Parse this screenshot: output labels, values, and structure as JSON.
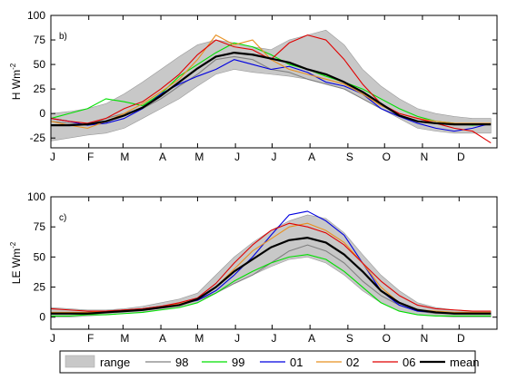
{
  "chart_data": [
    {
      "type": "line",
      "panel_label": "b)",
      "ylabel": "H Wm",
      "ylabel_sup": "-2",
      "ylim": [
        -35,
        100
      ],
      "yticks": [
        100,
        75,
        50,
        25,
        0,
        -25
      ],
      "xlim": [
        0,
        365
      ],
      "month_labels": [
        "J",
        "F",
        "M",
        "A",
        "M",
        "J",
        "J",
        "A",
        "S",
        "O",
        "N",
        "D"
      ],
      "month_starts": [
        0,
        31,
        59,
        90,
        120,
        151,
        181,
        212,
        243,
        273,
        304,
        334
      ],
      "x": [
        0,
        15,
        30,
        45,
        60,
        75,
        90,
        105,
        120,
        135,
        150,
        165,
        180,
        195,
        210,
        225,
        240,
        255,
        270,
        285,
        300,
        315,
        330,
        345,
        360
      ],
      "range": {
        "lower": [
          -28,
          -25,
          -22,
          -20,
          -15,
          -5,
          5,
          15,
          28,
          40,
          45,
          42,
          40,
          38,
          35,
          30,
          25,
          15,
          5,
          -5,
          -15,
          -18,
          -20,
          -20,
          -20
        ],
        "upper": [
          0,
          2,
          5,
          10,
          20,
          32,
          45,
          58,
          70,
          75,
          72,
          68,
          65,
          75,
          80,
          85,
          70,
          45,
          28,
          15,
          5,
          0,
          -3,
          -5,
          -5
        ]
      },
      "mean": [
        -12,
        -12,
        -11,
        -8,
        -2,
        6,
        18,
        32,
        46,
        58,
        62,
        60,
        56,
        52,
        45,
        40,
        32,
        22,
        10,
        -2,
        -8,
        -10,
        -11,
        -11,
        -11
      ],
      "series": [
        {
          "name": "98",
          "color": "#808080",
          "values": [
            -8,
            -10,
            -12,
            -5,
            0,
            5,
            15,
            28,
            40,
            55,
            58,
            55,
            45,
            42,
            35,
            30,
            25,
            15,
            5,
            -3,
            -8,
            -10,
            -12,
            -12,
            -12
          ]
        },
        {
          "name": "99",
          "color": "#00e000",
          "values": [
            -5,
            0,
            5,
            15,
            12,
            8,
            20,
            38,
            50,
            62,
            72,
            68,
            60,
            50,
            45,
            38,
            32,
            25,
            15,
            5,
            -3,
            -8,
            -10,
            -12,
            -10
          ]
        },
        {
          "name": "01",
          "color": "#0000e0",
          "values": [
            -5,
            -8,
            -12,
            -10,
            -5,
            5,
            20,
            30,
            38,
            45,
            55,
            50,
            45,
            48,
            42,
            32,
            28,
            20,
            5,
            -3,
            -10,
            -15,
            -18,
            -15,
            -10
          ]
        },
        {
          "name": "02",
          "color": "#e89020",
          "values": [
            -8,
            -12,
            -15,
            -8,
            0,
            10,
            22,
            35,
            55,
            80,
            70,
            75,
            55,
            45,
            40,
            35,
            30,
            20,
            8,
            0,
            -5,
            -8,
            -10,
            -10,
            -10
          ]
        },
        {
          "name": "06",
          "color": "#e00000",
          "values": [
            -5,
            -8,
            -10,
            -5,
            5,
            12,
            25,
            40,
            60,
            75,
            68,
            65,
            55,
            72,
            80,
            75,
            55,
            30,
            10,
            0,
            -5,
            -10,
            -15,
            -18,
            -30
          ]
        }
      ]
    },
    {
      "type": "line",
      "panel_label": "c)",
      "ylabel": "LE Wm",
      "ylabel_sup": "-2",
      "ylim": [
        -10,
        100
      ],
      "yticks": [
        100,
        75,
        50,
        25,
        0
      ],
      "xlim": [
        0,
        365
      ],
      "month_labels": [
        "J",
        "F",
        "M",
        "A",
        "M",
        "J",
        "J",
        "A",
        "S",
        "O",
        "N",
        "D"
      ],
      "month_starts": [
        0,
        31,
        59,
        90,
        120,
        151,
        181,
        212,
        243,
        273,
        304,
        334
      ],
      "x": [
        0,
        15,
        30,
        45,
        60,
        75,
        90,
        105,
        120,
        135,
        150,
        165,
        180,
        195,
        210,
        225,
        240,
        255,
        270,
        285,
        300,
        315,
        330,
        345,
        360
      ],
      "range": {
        "lower": [
          0,
          0,
          1,
          2,
          3,
          4,
          6,
          8,
          12,
          20,
          28,
          35,
          42,
          48,
          50,
          45,
          35,
          22,
          12,
          5,
          2,
          1,
          0,
          0,
          0
        ],
        "upper": [
          8,
          7,
          6,
          6,
          7,
          9,
          12,
          15,
          20,
          35,
          50,
          62,
          72,
          80,
          85,
          82,
          70,
          52,
          35,
          22,
          12,
          8,
          6,
          5,
          5
        ]
      },
      "mean": [
        3,
        3,
        3,
        4,
        5,
        6,
        8,
        10,
        15,
        25,
        38,
        48,
        58,
        64,
        66,
        62,
        52,
        38,
        22,
        12,
        6,
        4,
        3,
        3,
        3
      ],
      "series": [
        {
          "name": "98",
          "color": "#808080",
          "values": [
            3,
            3,
            4,
            5,
            5,
            6,
            8,
            10,
            14,
            20,
            28,
            35,
            45,
            55,
            60,
            55,
            45,
            30,
            18,
            10,
            5,
            3,
            3,
            3,
            3
          ]
        },
        {
          "name": "99",
          "color": "#00e000",
          "values": [
            1,
            1,
            2,
            2,
            3,
            4,
            6,
            8,
            12,
            20,
            30,
            38,
            45,
            50,
            52,
            48,
            38,
            25,
            12,
            5,
            2,
            1,
            1,
            1,
            1
          ]
        },
        {
          "name": "01",
          "color": "#0000e0",
          "values": [
            3,
            3,
            4,
            5,
            6,
            7,
            9,
            11,
            14,
            22,
            35,
            50,
            68,
            85,
            88,
            80,
            68,
            45,
            22,
            10,
            5,
            4,
            3,
            3,
            3
          ]
        },
        {
          "name": "02",
          "color": "#e89020",
          "values": [
            4,
            4,
            4,
            5,
            6,
            7,
            9,
            11,
            15,
            25,
            40,
            55,
            65,
            75,
            78,
            72,
            62,
            45,
            25,
            12,
            6,
            5,
            4,
            4,
            4
          ]
        },
        {
          "name": "06",
          "color": "#e00000",
          "values": [
            7,
            6,
            5,
            5,
            6,
            7,
            9,
            12,
            16,
            28,
            45,
            60,
            72,
            78,
            75,
            70,
            60,
            45,
            30,
            18,
            10,
            7,
            6,
            5,
            5
          ]
        }
      ]
    }
  ],
  "legend": {
    "placement": "bottom",
    "items": [
      {
        "label": "range",
        "kind": "patch",
        "color": "#c8c8c8"
      },
      {
        "label": "98",
        "kind": "line",
        "color": "#808080"
      },
      {
        "label": "99",
        "kind": "line",
        "color": "#00e000"
      },
      {
        "label": "01",
        "kind": "line",
        "color": "#0000e0"
      },
      {
        "label": "02",
        "kind": "line",
        "color": "#e89020"
      },
      {
        "label": "06",
        "kind": "line",
        "color": "#e00000"
      },
      {
        "label": "mean",
        "kind": "line",
        "color": "#000000"
      }
    ]
  }
}
